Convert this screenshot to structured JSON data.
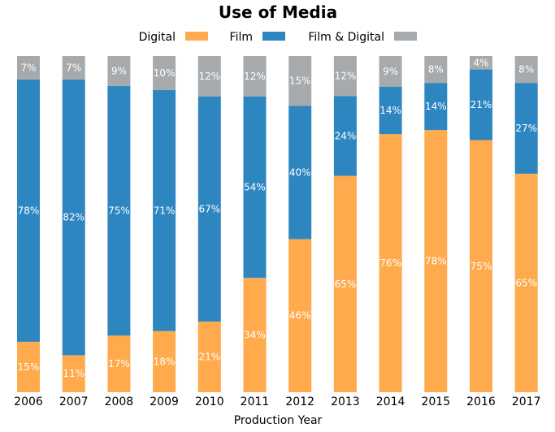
{
  "chart_data": {
    "type": "bar",
    "stacked": true,
    "title": "Use of Media",
    "xlabel": "Production Year",
    "ylabel": "",
    "categories": [
      "2006",
      "2007",
      "2008",
      "2009",
      "2010",
      "2011",
      "2012",
      "2013",
      "2014",
      "2015",
      "2016",
      "2017"
    ],
    "series": [
      {
        "name": "Digital",
        "color": "#ffaa4d",
        "values": [
          15,
          11,
          17,
          18,
          21,
          34,
          46,
          65,
          76,
          78,
          75,
          65
        ],
        "labels": [
          "15%",
          "11%",
          "17%",
          "18%",
          "21%",
          "34%",
          "46%",
          "65%",
          "76%",
          "78%",
          "75%",
          "65%"
        ]
      },
      {
        "name": "Film",
        "color": "#2e86c1",
        "values": [
          78,
          82,
          75,
          71,
          67,
          54,
          40,
          24,
          14,
          14,
          21,
          27
        ],
        "labels": [
          "78%",
          "82%",
          "75%",
          "71%",
          "67%",
          "54%",
          "40%",
          "24%",
          "14%",
          "14%",
          "21%",
          "27%"
        ]
      },
      {
        "name": "Film & Digital",
        "color": "#a6aaad",
        "values": [
          7,
          7,
          9,
          10,
          12,
          12,
          15,
          12,
          9,
          8,
          4,
          8
        ],
        "labels": [
          "7%",
          "7%",
          "9%",
          "10%",
          "12%",
          "12%",
          "15%",
          "12%",
          "9%",
          "8%",
          "4%",
          "8%"
        ]
      }
    ],
    "legend_position": "top",
    "grid": false
  }
}
